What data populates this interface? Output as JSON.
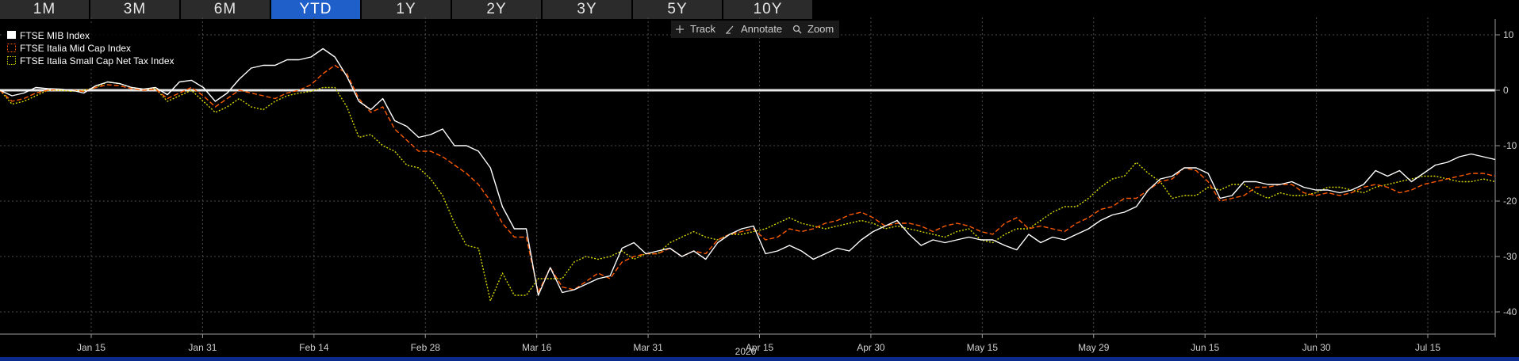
{
  "tabs": [
    {
      "label": "1M",
      "active": false
    },
    {
      "label": "3M",
      "active": false
    },
    {
      "label": "6M",
      "active": false
    },
    {
      "label": "YTD",
      "active": true
    },
    {
      "label": "1Y",
      "active": false
    },
    {
      "label": "2Y",
      "active": false
    },
    {
      "label": "3Y",
      "active": false
    },
    {
      "label": "5Y",
      "active": false
    },
    {
      "label": "10Y",
      "active": false
    }
  ],
  "toolbar": {
    "track_label": "Track",
    "track_icon": "crosshair-icon",
    "annotate_label": "Annotate",
    "annotate_icon": "pencil-icon",
    "zoom_label": "Zoom",
    "zoom_icon": "magnifier-icon"
  },
  "colors": {
    "background": "#000000",
    "tab_active": "#1f5fc9",
    "series_1": "#ffffff",
    "series_2": "#ff5a00",
    "series_3": "#d8d800"
  },
  "chart_data": {
    "type": "line",
    "x_tick_labels": [
      "Jan 15",
      "Jan 31",
      "Feb 14",
      "Feb 28",
      "Mar 16",
      "Mar 31",
      "Apr 15",
      "Apr 30",
      "May 15",
      "May 29",
      "Jun 15",
      "Jun 30",
      "Jul 15"
    ],
    "year_label": "2020",
    "xlim": [
      0,
      1
    ],
    "y_ticks": [
      10,
      0,
      -10,
      -20,
      -30,
      -40
    ],
    "ylim": [
      -44,
      12
    ],
    "y_axis_side": "right",
    "grid": true,
    "zero_line": true,
    "legend_position": "top-left",
    "series": [
      {
        "name": "FTSE MIB Index",
        "style": "solid",
        "color": "#ffffff",
        "x": [
          0,
          0.008,
          0.016,
          0.024,
          0.032,
          0.04,
          0.048,
          0.056,
          0.064,
          0.072,
          0.08,
          0.088,
          0.096,
          0.104,
          0.112,
          0.12,
          0.128,
          0.136,
          0.144,
          0.152,
          0.16,
          0.168,
          0.176,
          0.184,
          0.192,
          0.2,
          0.208,
          0.216,
          0.224,
          0.232,
          0.24,
          0.248,
          0.256,
          0.264,
          0.272,
          0.28,
          0.288,
          0.296,
          0.304,
          0.312,
          0.32,
          0.328,
          0.336,
          0.344,
          0.352,
          0.36,
          0.368,
          0.376,
          0.384,
          0.392,
          0.4,
          0.408,
          0.416,
          0.424,
          0.432,
          0.44,
          0.448,
          0.456,
          0.464,
          0.472,
          0.48,
          0.488,
          0.496,
          0.504,
          0.512,
          0.52,
          0.528,
          0.536,
          0.544,
          0.552,
          0.56,
          0.568,
          0.576,
          0.584,
          0.592,
          0.6,
          0.608,
          0.616,
          0.624,
          0.632,
          0.64,
          0.648,
          0.656,
          0.664,
          0.672,
          0.68,
          0.688,
          0.696,
          0.704,
          0.712,
          0.72,
          0.728,
          0.736,
          0.744,
          0.752,
          0.76,
          0.768,
          0.776,
          0.784,
          0.792,
          0.8,
          0.808,
          0.816,
          0.824,
          0.832,
          0.84,
          0.848,
          0.856,
          0.864,
          0.872,
          0.88,
          0.888,
          0.896,
          0.904,
          0.912,
          0.92,
          0.928,
          0.936,
          0.944,
          0.952,
          0.96,
          0.968,
          0.976,
          0.984,
          0.992,
          1.0
        ],
        "values": [
          0,
          -1,
          -0.5,
          0.5,
          0.3,
          0.2,
          0,
          -0.5,
          0.8,
          1.5,
          1.2,
          0.5,
          0.2,
          0.5,
          -0.8,
          1.5,
          1.8,
          0.5,
          -2,
          -0.5,
          2,
          4,
          4.5,
          4.5,
          5.5,
          5.5,
          6,
          7.5,
          6,
          2.5,
          -2,
          -3.5,
          -1.5,
          -5.5,
          -6.5,
          -8.5,
          -8,
          -7,
          -10,
          -10,
          -11,
          -14,
          -21,
          -25,
          -25,
          -37,
          -32,
          -36.5,
          -36,
          -35,
          -34,
          -33.5,
          -28.5,
          -27.5,
          -29.5,
          -29,
          -28.5,
          -30,
          -29,
          -30.5,
          -27.5,
          -26,
          -25,
          -24.5,
          -29.5,
          -29,
          -28,
          -29,
          -30.5,
          -29.5,
          -28.5,
          -29,
          -27,
          -25.5,
          -24.5,
          -23.5,
          -26,
          -28,
          -27,
          -27.5,
          -27,
          -26.5,
          -27,
          -27,
          -28,
          -28.8,
          -26,
          -27.5,
          -26.5,
          -27,
          -26,
          -25,
          -23.5,
          -22.5,
          -22,
          -21,
          -18,
          -16,
          -15.5,
          -14,
          -14,
          -15,
          -19.5,
          -19,
          -16.5,
          -16.5,
          -17,
          -17,
          -16.5,
          -17.5,
          -18,
          -18,
          -18.5,
          -18,
          -17,
          -14.5,
          -15.5,
          -14.5,
          -16.5,
          -15,
          -13.5,
          -13,
          -12,
          -11.5,
          -12,
          -12.5
        ]
      },
      {
        "name": "FTSE Italia Mid Cap Index",
        "style": "dashed",
        "color": "#ff5a00",
        "x": [
          0,
          0.008,
          0.016,
          0.024,
          0.032,
          0.04,
          0.048,
          0.056,
          0.064,
          0.072,
          0.08,
          0.088,
          0.096,
          0.104,
          0.112,
          0.12,
          0.128,
          0.136,
          0.144,
          0.152,
          0.16,
          0.168,
          0.176,
          0.184,
          0.192,
          0.2,
          0.208,
          0.216,
          0.224,
          0.232,
          0.24,
          0.248,
          0.256,
          0.264,
          0.272,
          0.28,
          0.288,
          0.296,
          0.304,
          0.312,
          0.32,
          0.328,
          0.336,
          0.344,
          0.352,
          0.36,
          0.368,
          0.376,
          0.384,
          0.392,
          0.4,
          0.408,
          0.416,
          0.424,
          0.432,
          0.44,
          0.448,
          0.456,
          0.464,
          0.472,
          0.48,
          0.488,
          0.496,
          0.504,
          0.512,
          0.52,
          0.528,
          0.536,
          0.544,
          0.552,
          0.56,
          0.568,
          0.576,
          0.584,
          0.592,
          0.6,
          0.608,
          0.616,
          0.624,
          0.632,
          0.64,
          0.648,
          0.656,
          0.664,
          0.672,
          0.68,
          0.688,
          0.696,
          0.704,
          0.712,
          0.72,
          0.728,
          0.736,
          0.744,
          0.752,
          0.76,
          0.768,
          0.776,
          0.784,
          0.792,
          0.8,
          0.808,
          0.816,
          0.824,
          0.832,
          0.84,
          0.848,
          0.856,
          0.864,
          0.872,
          0.88,
          0.888,
          0.896,
          0.904,
          0.912,
          0.92,
          0.928,
          0.936,
          0.944,
          0.952,
          0.96,
          0.968,
          0.976,
          0.984,
          0.992,
          1.0
        ],
        "values": [
          0,
          -2,
          -1.5,
          -0.5,
          0,
          0.2,
          0,
          -0.2,
          0.5,
          1,
          0.8,
          0.3,
          0,
          0.2,
          -1.5,
          -0.5,
          0.5,
          -1,
          -3,
          -1.5,
          0,
          -0.5,
          -1,
          -1.5,
          -0.5,
          0,
          1,
          3,
          4.5,
          3,
          -1.5,
          -4,
          -3,
          -7,
          -9,
          -11,
          -11,
          -12,
          -13.5,
          -15,
          -17,
          -20,
          -24,
          -26.5,
          -26.5,
          -36.5,
          -32,
          -35.5,
          -36,
          -34.5,
          -33,
          -34,
          -31,
          -30,
          -29.5,
          -29.5,
          -28.5,
          -30,
          -29,
          -29.5,
          -27,
          -26,
          -25.5,
          -25,
          -27,
          -26.5,
          -25,
          -25.5,
          -25,
          -24,
          -23.5,
          -22.5,
          -22,
          -23,
          -24.5,
          -24,
          -24,
          -24.5,
          -25.5,
          -24.5,
          -24,
          -24.5,
          -25.5,
          -26,
          -24,
          -23,
          -25,
          -24.5,
          -25,
          -25.5,
          -24,
          -23,
          -21.5,
          -21,
          -19.5,
          -19.5,
          -18,
          -16.5,
          -16,
          -14,
          -14.5,
          -16.5,
          -20,
          -19.5,
          -19,
          -17.5,
          -17.5,
          -17,
          -17,
          -18.5,
          -19,
          -18.5,
          -19,
          -18.5,
          -17.5,
          -17,
          -17.5,
          -18.5,
          -18,
          -17,
          -16.5,
          -16,
          -15.5,
          -15,
          -15,
          -15.5
        ]
      },
      {
        "name": "FTSE Italia Small Cap Net Tax Index",
        "style": "dotted",
        "color": "#d8d800",
        "x": [
          0,
          0.008,
          0.016,
          0.024,
          0.032,
          0.04,
          0.048,
          0.056,
          0.064,
          0.072,
          0.08,
          0.088,
          0.096,
          0.104,
          0.112,
          0.12,
          0.128,
          0.136,
          0.144,
          0.152,
          0.16,
          0.168,
          0.176,
          0.184,
          0.192,
          0.2,
          0.208,
          0.216,
          0.224,
          0.232,
          0.24,
          0.248,
          0.256,
          0.264,
          0.272,
          0.28,
          0.288,
          0.296,
          0.304,
          0.312,
          0.32,
          0.328,
          0.336,
          0.344,
          0.352,
          0.36,
          0.368,
          0.376,
          0.384,
          0.392,
          0.4,
          0.408,
          0.416,
          0.424,
          0.432,
          0.44,
          0.448,
          0.456,
          0.464,
          0.472,
          0.48,
          0.488,
          0.496,
          0.504,
          0.512,
          0.52,
          0.528,
          0.536,
          0.544,
          0.552,
          0.56,
          0.568,
          0.576,
          0.584,
          0.592,
          0.6,
          0.608,
          0.616,
          0.624,
          0.632,
          0.64,
          0.648,
          0.656,
          0.664,
          0.672,
          0.68,
          0.688,
          0.696,
          0.704,
          0.712,
          0.72,
          0.728,
          0.736,
          0.744,
          0.752,
          0.76,
          0.768,
          0.776,
          0.784,
          0.792,
          0.8,
          0.808,
          0.816,
          0.824,
          0.832,
          0.84,
          0.848,
          0.856,
          0.864,
          0.872,
          0.88,
          0.888,
          0.896,
          0.904,
          0.912,
          0.92,
          0.928,
          0.936,
          0.944,
          0.952,
          0.96,
          0.968,
          0.976,
          0.984,
          0.992,
          1.0
        ],
        "values": [
          0,
          -2.5,
          -2,
          -1,
          0,
          0,
          -0.2,
          0,
          0.5,
          1.5,
          1.2,
          0.5,
          0.2,
          0.3,
          -2,
          -1,
          0,
          -2,
          -4,
          -3,
          -1.5,
          -3,
          -3.5,
          -2,
          -1,
          -0.5,
          -0.2,
          0.5,
          0.5,
          -3,
          -8.5,
          -8,
          -10,
          -11,
          -13.5,
          -14,
          -16,
          -19,
          -24,
          -28,
          -28.5,
          -38,
          -33,
          -37,
          -37,
          -34,
          -34,
          -34,
          -31,
          -30,
          -30.5,
          -30,
          -29,
          -30.5,
          -29.5,
          -29.5,
          -27.5,
          -26.5,
          -25.5,
          -26.5,
          -27,
          -26,
          -26,
          -25.5,
          -25,
          -24,
          -23,
          -24,
          -24.5,
          -25,
          -24.5,
          -24,
          -23.5,
          -24,
          -25,
          -24.5,
          -25,
          -25.5,
          -26,
          -26.5,
          -25.5,
          -25,
          -27,
          -27.5,
          -26,
          -25,
          -25,
          -23.5,
          -22,
          -21,
          -21,
          -19.5,
          -17.5,
          -16,
          -15.5,
          -13,
          -15,
          -16.5,
          -19.5,
          -19,
          -19,
          -17.5,
          -18,
          -17,
          -17,
          -18.5,
          -19.5,
          -18.5,
          -19,
          -19,
          -18.5,
          -17.5,
          -17.5,
          -18,
          -18.5,
          -17.5,
          -17,
          -16.5,
          -16,
          -15.5,
          -15.5,
          -16,
          -16.5,
          -16.5,
          -16,
          -16.5
        ]
      }
    ]
  }
}
